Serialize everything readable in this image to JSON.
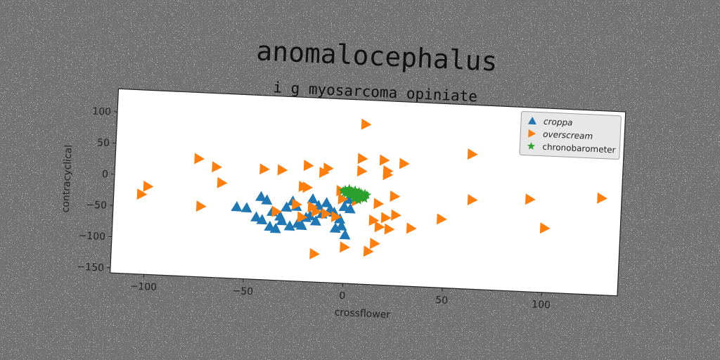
{
  "chart_data": {
    "type": "scatter",
    "title": "anomalocephalus",
    "subtitle": "i g myosarcoma opiniate",
    "xlabel": "crossflower",
    "ylabel": "contracyclical",
    "xlim": [
      -117,
      138
    ],
    "ylim": [
      -158,
      137
    ],
    "xticks": [
      -100,
      -50,
      0,
      50,
      100
    ],
    "yticks": [
      -150,
      -100,
      -50,
      0,
      50,
      100
    ],
    "grid": false,
    "legend_position": "top-right",
    "series": [
      {
        "name": "croppa",
        "marker": "triangle-up",
        "color": "#1f77b4",
        "x": [
          -55,
          -50,
          -43,
          -40,
          -38,
          -35,
          -32,
          -30,
          -28,
          -25,
          -22,
          -20,
          -18,
          -15,
          -12,
          -10,
          -8,
          -5,
          -3,
          -1,
          1,
          0,
          -2,
          -6,
          -14,
          -24,
          -33,
          -42,
          -45,
          -37,
          -27,
          -17,
          2
        ],
        "y": [
          -43,
          -44,
          -25,
          -30,
          -72,
          -75,
          -62,
          -40,
          -70,
          -38,
          -68,
          -55,
          -52,
          -60,
          -48,
          -30,
          -40,
          -70,
          -55,
          -35,
          -23,
          -80,
          -66,
          -45,
          -35,
          -65,
          -55,
          -62,
          -58,
          -48,
          -30,
          -25,
          -38
        ]
      },
      {
        "name": "overscream",
        "marker": "triangle-right",
        "color": "#ff7f0e",
        "x": [
          -100,
          -103,
          -75,
          -73,
          -66,
          -63,
          -42,
          -33,
          -20,
          -10,
          -12,
          -20,
          -35,
          -22,
          -3,
          7,
          7,
          8,
          20,
          28,
          18,
          20,
          24,
          5,
          -2,
          16,
          -15,
          -10,
          -22,
          -5,
          14,
          20,
          22,
          25,
          33,
          17,
          12,
          48,
          62,
          63,
          92,
          100,
          128,
          -15,
          0,
          15,
          -25,
          -17
        ],
        "y": [
          -17,
          -30,
          31,
          -45,
          19,
          -6,
          19,
          19,
          28,
          25,
          18,
          -7,
          -48,
          -6,
          -10,
          43,
          23,
          98,
          19,
          38,
          42,
          25,
          -15,
          -25,
          -23,
          -28,
          -45,
          -48,
          -55,
          -52,
          -55,
          -50,
          -68,
          -45,
          -65,
          -65,
          -105,
          -48,
          58,
          -15,
          -10,
          -55,
          -3,
          -113,
          -100,
          -92,
          -35,
          -38
        ]
      },
      {
        "name": "chronobarometer",
        "marker": "star",
        "color": "#2ca02c",
        "x": [
          -2,
          -1,
          0,
          1,
          2,
          3,
          4,
          5,
          6,
          7,
          8,
          9,
          10,
          1,
          3,
          5,
          7,
          9,
          0,
          2,
          4,
          6,
          8,
          -1,
          4,
          6
        ],
        "y": [
          -10,
          -8,
          -12,
          -6,
          -9,
          -11,
          -8,
          -14,
          -10,
          -12,
          -16,
          -13,
          -15,
          -16,
          -17,
          -18,
          -20,
          -21,
          -14,
          -15,
          -19,
          -17,
          -19,
          -13,
          -22,
          -24
        ]
      }
    ]
  }
}
